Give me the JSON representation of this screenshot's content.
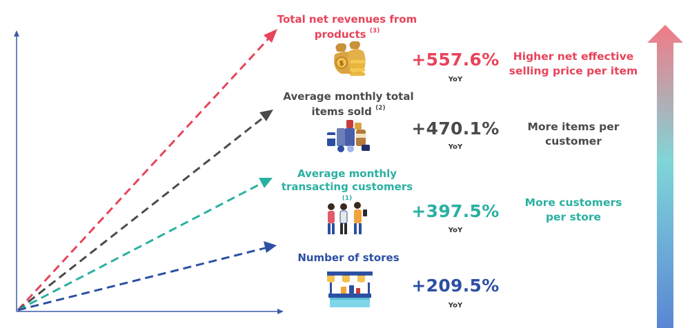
{
  "colors": {
    "red": "#e8435a",
    "gray": "#4a4a4a",
    "teal": "#2ab0a2",
    "blue": "#2c4fa3",
    "axis": "#3d5aa8"
  },
  "metrics": [
    {
      "title": "Total net revenues from products",
      "footnote": "(3)",
      "change": "+557.6%",
      "yoy": "YoY",
      "driver": "Higher net effective selling price per item",
      "icon": "coins-money-bag-icon",
      "color": "#e8435a"
    },
    {
      "title": "Average monthly total items sold",
      "footnote": "(2)",
      "change": "+470.1%",
      "yoy": "YoY",
      "driver": "More items per customer",
      "icon": "products-icon",
      "color": "#4a4a4a"
    },
    {
      "title": "Average monthly transacting customers",
      "footnote": "(1)",
      "change": "+397.5%",
      "yoy": "YoY",
      "driver": "More customers per store",
      "icon": "customers-icon",
      "color": "#2ab0a2"
    },
    {
      "title": "Number of stores",
      "footnote": "",
      "change": "+209.5%",
      "yoy": "YoY",
      "driver": "",
      "icon": "store-icon",
      "color": "#2c4fa3"
    }
  ]
}
